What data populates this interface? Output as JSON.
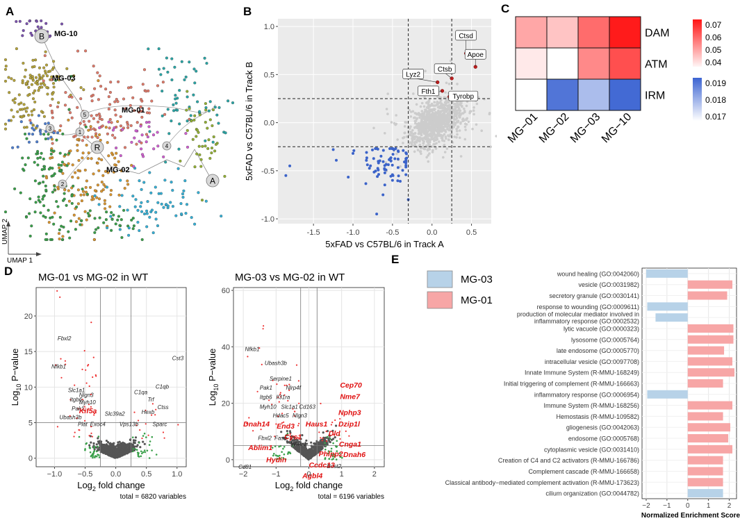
{
  "chart_data": [
    {
      "panel": "A",
      "type": "scatter",
      "title": "",
      "xlabel": "UMAP 1",
      "ylabel": "UMAP 2",
      "cluster_labels": [
        "MG-10",
        "MG-03",
        "MG-01",
        "MG-02"
      ],
      "trajectory_nodes": [
        "B",
        "3",
        "5",
        "1",
        "R",
        "2",
        "4",
        "A"
      ],
      "colors": {
        "MG-10": "#7b52ae",
        "MG-03": "#b5a33a",
        "MG-01": "#e07a6a",
        "MG-02": "#d9952f",
        "green": "#3aa04a",
        "blue": "#4e7ecf",
        "teal": "#2aa6a6",
        "olive": "#93b034",
        "cyan": "#35b0d6",
        "magenta": "#cf5fd0"
      }
    },
    {
      "panel": "B",
      "type": "scatter",
      "xlabel": "5xFAD vs C57BL/6 in Track A",
      "ylabel": "5xFAD vs C57BL/6 in Track B",
      "xlim": [
        -1.95,
        0.75
      ],
      "ylim": [
        -1.05,
        1.08
      ],
      "xticks": [
        -1.5,
        -1.0,
        -0.5,
        0.0,
        0.5
      ],
      "xtick_labels": [
        "-1.5",
        "-1.0",
        "-0.5",
        "0.0",
        "0.5"
      ],
      "yticks": [
        -1.0,
        -0.5,
        0.0,
        0.5,
        1.0
      ],
      "ytick_labels": [
        "-1.0",
        "-0.5",
        "0.0",
        "0.5",
        "1.0"
      ],
      "vlines": [
        -0.3,
        0.25
      ],
      "hlines": [
        -0.25,
        0.25
      ],
      "highlighted": [
        {
          "label": "Ctsd",
          "x": 0.43,
          "y": 0.72
        },
        {
          "label": "Apoe",
          "x": 0.55,
          "y": 0.58
        },
        {
          "label": "Ctsb",
          "x": 0.25,
          "y": 0.46
        },
        {
          "label": "Lyz2",
          "x": 0.07,
          "y": 0.42
        },
        {
          "label": "Fth1",
          "x": 0.13,
          "y": 0.33
        },
        {
          "label": "Tyrobp",
          "x": 0.22,
          "y": 0.27
        }
      ],
      "colors": {
        "grey": "#cccccc",
        "down": "#3b63c9",
        "up": "#c81e1e"
      }
    },
    {
      "panel": "C",
      "type": "heatmap",
      "columns": [
        "MG−01",
        "MG−02",
        "MG−03",
        "MG−10"
      ],
      "rows": [
        "DAM",
        "ATM",
        "IRM"
      ],
      "values": [
        [
          0.052,
          0.048,
          0.06,
          0.071
        ],
        [
          0.043,
          0.04,
          0.056,
          0.064
        ],
        [
          0.017,
          0.0195,
          0.0182,
          0.0197
        ]
      ],
      "legend_red": {
        "ticks": [
          "0.07",
          "0.06",
          "0.05",
          "0.04"
        ],
        "range": [
          0.04,
          0.072
        ]
      },
      "legend_blue": {
        "ticks": [
          "0.019",
          "0.018",
          "0.017"
        ],
        "range": [
          0.017,
          0.0198
        ]
      }
    },
    {
      "panel": "D1",
      "type": "scatter",
      "title": "MG-01 vs MG-02 in WT",
      "xlabel_base": "Log",
      "xlabel_sub": "2",
      "xlabel_rest": " fold change",
      "ylabel_base": "Log",
      "ylabel_sub": "10",
      "ylabel_rest": " P−value",
      "xlim": [
        -1.3,
        1.15
      ],
      "ylim": [
        -1.2,
        24
      ],
      "xticks": [
        -1.0,
        -0.5,
        0.0,
        0.5,
        1.0
      ],
      "xtick_labels": [
        "−1.0",
        "−0.5",
        "0.0",
        "0.5",
        "1.0"
      ],
      "yticks": [
        0,
        5,
        10,
        15,
        20
      ],
      "ytick_labels": [
        "0",
        "5",
        "10",
        "15",
        "20"
      ],
      "vlines": [
        -0.25,
        0.25
      ],
      "hlines": [
        5
      ],
      "caption": "total = 6820 variables",
      "labels": [
        {
          "text": "Fbxl2",
          "x": -0.95,
          "y": 16.6,
          "hl": false
        },
        {
          "text": "Nfkb1",
          "x": -1.05,
          "y": 12.6,
          "hl": false
        },
        {
          "text": "Cst3",
          "x": 0.92,
          "y": 13.8,
          "hl": false
        },
        {
          "text": "Slc1a1",
          "x": -0.78,
          "y": 9.3,
          "hl": false
        },
        {
          "text": "Itgb6",
          "x": -0.75,
          "y": 8.0,
          "hl": false
        },
        {
          "text": "Nlgn3",
          "x": -0.6,
          "y": 8.6,
          "hl": false
        },
        {
          "text": "Myh10",
          "x": -0.6,
          "y": 7.6,
          "hl": false
        },
        {
          "text": "Pak1",
          "x": -0.72,
          "y": 6.7,
          "hl": false
        },
        {
          "text": "Kif5a",
          "x": -0.6,
          "y": 6.3,
          "hl": true
        },
        {
          "text": "Ubash3b",
          "x": -0.92,
          "y": 5.5,
          "hl": false
        },
        {
          "text": "Plat",
          "x": -0.62,
          "y": 4.5,
          "hl": false
        },
        {
          "text": "Exoc4",
          "x": -0.42,
          "y": 4.5,
          "hl": false
        },
        {
          "text": "Slc39a2",
          "x": -0.18,
          "y": 6.0,
          "hl": false
        },
        {
          "text": "Vps13b",
          "x": 0.06,
          "y": 4.5,
          "hl": false
        },
        {
          "text": "C1qb",
          "x": 0.65,
          "y": 9.8,
          "hl": false
        },
        {
          "text": "C1qa",
          "x": 0.3,
          "y": 9.0,
          "hl": false
        },
        {
          "text": "Trf",
          "x": 0.52,
          "y": 8.0,
          "hl": false
        },
        {
          "text": "Ctss",
          "x": 0.68,
          "y": 6.9,
          "hl": false
        },
        {
          "text": "Hexb",
          "x": 0.42,
          "y": 6.2,
          "hl": false
        },
        {
          "text": "Sparc",
          "x": 0.6,
          "y": 4.5,
          "hl": false
        }
      ]
    },
    {
      "panel": "D2",
      "type": "scatter",
      "title": "MG-03 vs MG-02 in WT",
      "xlabel_base": "Log",
      "xlabel_sub": "2",
      "xlabel_rest": " fold change",
      "ylabel_base": "Log",
      "ylabel_sub": "10",
      "ylabel_rest": " P−value",
      "xlim": [
        -2.3,
        2.3
      ],
      "ylim": [
        -2.5,
        61
      ],
      "xticks": [
        -2,
        -1,
        0,
        1,
        2
      ],
      "xtick_labels": [
        "−2",
        "−1",
        "0",
        "1",
        "2"
      ],
      "yticks": [
        0,
        20,
        40,
        60
      ],
      "ytick_labels": [
        "0",
        "20",
        "40",
        "60"
      ],
      "vlines": [
        -0.25,
        0.25
      ],
      "hlines": [
        5
      ],
      "caption": "total = 6196 variables",
      "labels": [
        {
          "text": "Nfkb1",
          "x": -1.95,
          "y": 38.5,
          "hl": false
        },
        {
          "text": "Ubash3b",
          "x": -1.35,
          "y": 33.5,
          "hl": false
        },
        {
          "text": "Serpine1",
          "x": -1.2,
          "y": 28.0,
          "hl": false
        },
        {
          "text": "Pak1",
          "x": -1.5,
          "y": 24.8,
          "hl": false
        },
        {
          "text": "Nlrp4f",
          "x": -0.7,
          "y": 24.8,
          "hl": false
        },
        {
          "text": "Itgb6",
          "x": -1.5,
          "y": 21.5,
          "hl": false
        },
        {
          "text": "Il31ra",
          "x": -1.0,
          "y": 21.5,
          "hl": false
        },
        {
          "text": "Myh10",
          "x": -1.5,
          "y": 18.0,
          "hl": false
        },
        {
          "text": "Slc1a1",
          "x": -0.85,
          "y": 18.0,
          "hl": false
        },
        {
          "text": "Cd163",
          "x": -0.3,
          "y": 18.0,
          "hl": false
        },
        {
          "text": "Hdac5",
          "x": -1.1,
          "y": 15.0,
          "hl": false
        },
        {
          "text": "Nlgn3",
          "x": -0.5,
          "y": 15.0,
          "hl": false
        },
        {
          "text": "Dnah14",
          "x": -2.0,
          "y": 11.8,
          "hl": true
        },
        {
          "text": "Haus1",
          "x": -0.1,
          "y": 11.8,
          "hl": true
        },
        {
          "text": "End3",
          "x": -0.98,
          "y": 11.0,
          "hl": true
        },
        {
          "text": "Fbxl2",
          "x": -1.55,
          "y": 7.0,
          "hl": false
        },
        {
          "text": "Fasn",
          "x": -1.05,
          "y": 7.0,
          "hl": false
        },
        {
          "text": "Cys1",
          "x": -0.75,
          "y": 7.2,
          "hl": true
        },
        {
          "text": "Wwtr1",
          "x": -0.55,
          "y": 4.9,
          "hl": false
        },
        {
          "text": "Ablim1",
          "x": -1.85,
          "y": 3.4,
          "hl": true
        },
        {
          "text": "Hydin",
          "x": -1.3,
          "y": -0.9,
          "hl": true
        },
        {
          "text": "Cd81",
          "x": -2.15,
          "y": -3.2,
          "hl": false
        },
        {
          "text": "Cep70",
          "x": 0.95,
          "y": 25.5,
          "hl": true
        },
        {
          "text": "Nme7",
          "x": 0.95,
          "y": 21.5,
          "hl": true
        },
        {
          "text": "Nphp3",
          "x": 0.9,
          "y": 15.8,
          "hl": true
        },
        {
          "text": "Dzip1l",
          "x": 0.9,
          "y": 11.8,
          "hl": true
        },
        {
          "text": "Dld",
          "x": 0.6,
          "y": 8.5,
          "hl": true
        },
        {
          "text": "Cnga1",
          "x": 0.92,
          "y": 4.6,
          "hl": true
        },
        {
          "text": "Phlpp2",
          "x": 0.3,
          "y": 1.2,
          "hl": true
        },
        {
          "text": "Dnah6",
          "x": 1.05,
          "y": 1.0,
          "hl": true
        },
        {
          "text": "Best2",
          "x": 0.55,
          "y": -3.0,
          "hl": false
        },
        {
          "text": "Ccdc13",
          "x": 0.0,
          "y": -2.8,
          "hl": true
        },
        {
          "text": "Agbl4",
          "x": -0.2,
          "y": -6.5,
          "hl": true
        }
      ]
    },
    {
      "panel": "E",
      "type": "bar",
      "orientation": "horizontal",
      "xlabel": "Normalized Enrichment Score",
      "xlim": [
        -2.2,
        2.35
      ],
      "xticks": [
        -2,
        -1,
        0,
        1,
        2
      ],
      "xtick_labels": [
        "−2",
        "−1",
        "0",
        "1",
        "2"
      ],
      "legend": [
        {
          "name": "MG-03",
          "color": "#b7d2e8"
        },
        {
          "name": "MG-01",
          "color": "#f7a6a6"
        }
      ],
      "categories": [
        "wound healing (GO:0042060)",
        "vesicle (GO:0031982)",
        "secretory granule (GO:0030141)",
        "response to wounding (GO:0009611)",
        "production of molecular mediator involved in inflammatory response (GO:0002532)",
        "lytic vacuole (GO:0000323)",
        "lysosome (GO:0005764)",
        "late endosome (GO:0005770)",
        "intracellular vesicle (GO:0097708)",
        "Innate Immune System (R-MMU-168249)",
        "Initial triggering of complement (R-MMU-166663)",
        "inflammatory response (GO:0006954)",
        "Immune System (R-MMU-168256)",
        "Hemostasis (R-MMU-109582)",
        "gliogenesis (GO:0042063)",
        "endosome (GO:0005768)",
        "cytoplasmic vesicle (GO:0031410)",
        "Creation of C4 and C2 activators (R-MMU-166786)",
        "Complement cascade (R-MMU-166658)",
        "Classical antibody-mediated complement activation (R-MMU-173623)",
        "cilium organization (GO:0044782)"
      ],
      "label_lines": [
        [
          "wound healing (GO:0042060)"
        ],
        [
          "vesicle (GO:0031982)"
        ],
        [
          "secretory granule (GO:0030141)"
        ],
        [
          "response to wounding (GO:0009611)"
        ],
        [
          "production of molecular mediator involved in",
          "inflammatory response (GO:0002532)"
        ],
        [
          "lytic vacuole (GO:0000323)"
        ],
        [
          "lysosome (GO:0005764)"
        ],
        [
          "late endosome (GO:0005770)"
        ],
        [
          "intracellular vesicle (GO:0097708)"
        ],
        [
          "Innate Immune System (R-MMU-168249)"
        ],
        [
          "Initial triggering of complement (R-MMU-166663)"
        ],
        [
          "inflammatory response (GO:0006954)"
        ],
        [
          "Immune System (R-MMU-168256)"
        ],
        [
          "Hemostasis (R-MMU-109582)"
        ],
        [
          "gliogenesis (GO:0042063)"
        ],
        [
          "endosome (GO:0005768)"
        ],
        [
          "cytoplasmic vesicle (GO:0031410)"
        ],
        [
          "Creation of C4 and C2 activators (R-MMU-166786)"
        ],
        [
          "Complement cascade (R-MMU-166658)"
        ],
        [
          "Classical antibody−mediated complement activation (R-MMU-173623)"
        ],
        [
          "cilium organization (GO:0044782)"
        ]
      ],
      "values": [
        -2.0,
        2.15,
        1.9,
        -1.95,
        -1.55,
        2.2,
        2.2,
        1.75,
        2.15,
        2.25,
        1.7,
        -1.95,
        2.15,
        1.7,
        2.05,
        1.95,
        2.15,
        1.7,
        1.7,
        1.7,
        1.7
      ],
      "groups": [
        "MG-03",
        "MG-01",
        "MG-01",
        "MG-03",
        "MG-03",
        "MG-01",
        "MG-01",
        "MG-01",
        "MG-01",
        "MG-01",
        "MG-01",
        "MG-03",
        "MG-01",
        "MG-01",
        "MG-01",
        "MG-01",
        "MG-01",
        "MG-01",
        "MG-01",
        "MG-01",
        "MG-03"
      ]
    }
  ],
  "panel_letters": [
    "A",
    "B",
    "C",
    "D",
    "E"
  ]
}
